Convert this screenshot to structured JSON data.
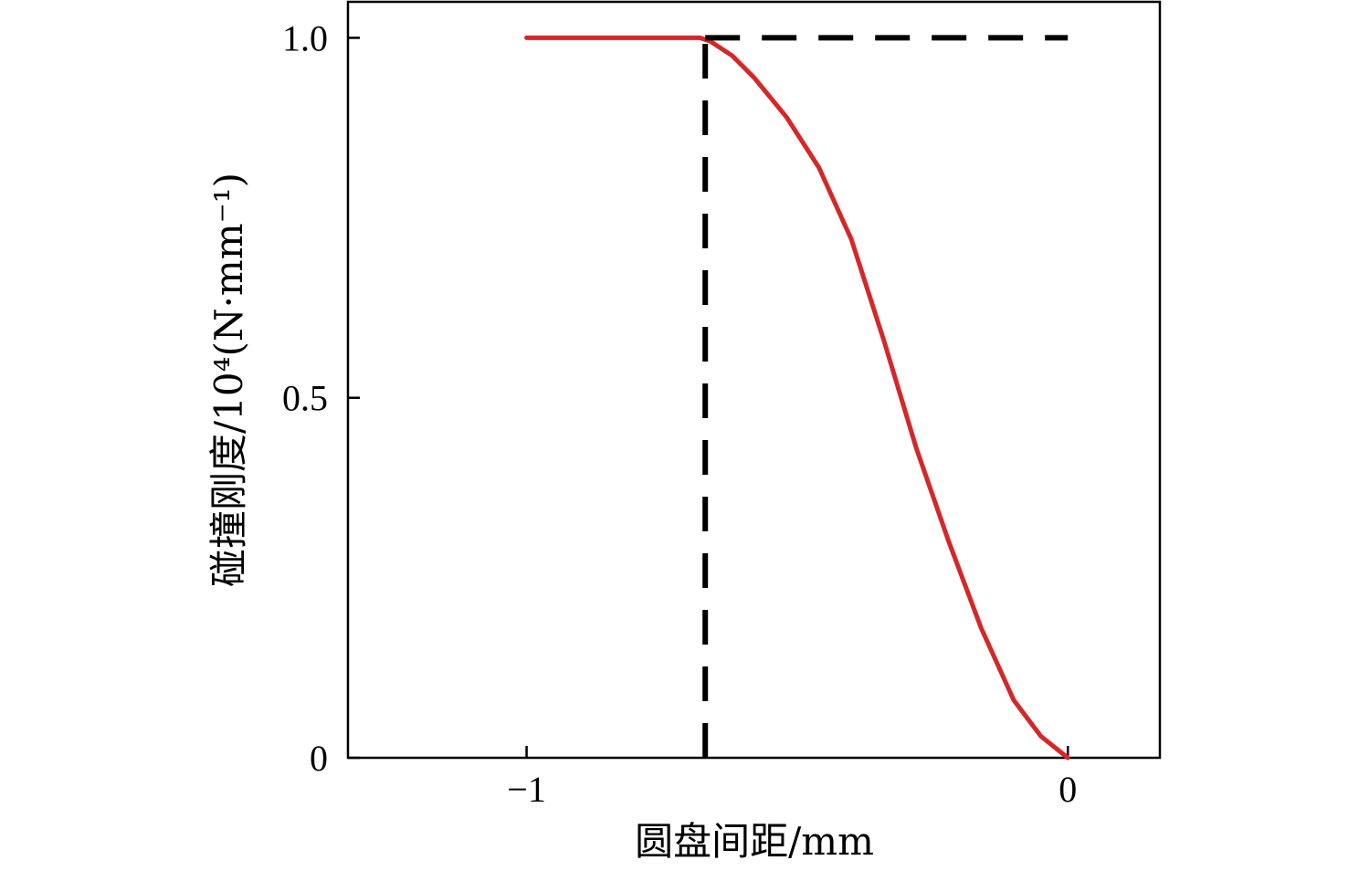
{
  "chart_data": {
    "type": "line",
    "xlabel": "圆盘间距/mm",
    "ylabel": "碰撞刚度/10⁴(N·mm⁻¹)",
    "xlim": [
      -1.33,
      0.17
    ],
    "ylim": [
      0,
      1.05
    ],
    "x_ticks": [
      -1,
      0
    ],
    "x_tick_labels": [
      "−1",
      "0"
    ],
    "y_ticks": [
      0,
      0.5,
      1.0
    ],
    "y_tick_labels": [
      "0",
      "0.5",
      "1.0"
    ],
    "grid": false,
    "legend": "none",
    "series": [
      {
        "style": "solid",
        "color": "#d62728",
        "x": [
          -1.0,
          -0.9,
          -0.8,
          -0.68,
          -0.66,
          -0.62,
          -0.58,
          -0.52,
          -0.46,
          -0.4,
          -0.34,
          -0.28,
          -0.22,
          -0.16,
          -0.1,
          -0.05,
          0.0
        ],
        "y": [
          1.0,
          1.0,
          1.0,
          1.0,
          0.995,
          0.975,
          0.945,
          0.89,
          0.82,
          0.72,
          0.58,
          0.43,
          0.3,
          0.18,
          0.08,
          0.03,
          0.0
        ]
      },
      {
        "style": "dashed",
        "color": "#000000",
        "x": [
          -0.67,
          0.0
        ],
        "y": [
          1.0,
          1.0
        ]
      },
      {
        "style": "dashed",
        "color": "#000000",
        "x": [
          -0.67,
          -0.67
        ],
        "y": [
          0.0,
          1.0
        ]
      }
    ]
  }
}
